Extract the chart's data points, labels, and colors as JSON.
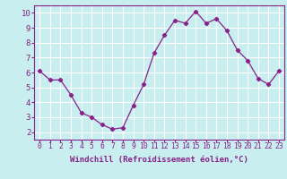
{
  "x": [
    0,
    1,
    2,
    3,
    4,
    5,
    6,
    7,
    8,
    9,
    10,
    11,
    12,
    13,
    14,
    15,
    16,
    17,
    18,
    19,
    20,
    21,
    22,
    23
  ],
  "y": [
    6.1,
    5.5,
    5.5,
    4.5,
    3.3,
    3.0,
    2.5,
    2.2,
    2.3,
    3.8,
    5.2,
    7.3,
    8.5,
    9.5,
    9.3,
    10.1,
    9.3,
    9.6,
    8.8,
    7.5,
    6.8,
    5.6,
    5.2,
    6.1
  ],
  "line_color": "#882288",
  "marker": "D",
  "marker_size": 2.2,
  "bg_color": "#c8eef0",
  "grid_color": "#ffffff",
  "xlabel": "Windchill (Refroidissement éolien,°C)",
  "xlim": [
    -0.5,
    23.5
  ],
  "ylim": [
    1.5,
    10.5
  ],
  "yticks": [
    2,
    3,
    4,
    5,
    6,
    7,
    8,
    9,
    10
  ],
  "xticks": [
    0,
    1,
    2,
    3,
    4,
    5,
    6,
    7,
    8,
    9,
    10,
    11,
    12,
    13,
    14,
    15,
    16,
    17,
    18,
    19,
    20,
    21,
    22,
    23
  ],
  "tick_color": "#882288",
  "label_color": "#882288",
  "spine_color": "#882288",
  "xlabel_fontsize": 6.5,
  "tick_fontsize": 5.8,
  "ytick_fontsize": 6.5
}
